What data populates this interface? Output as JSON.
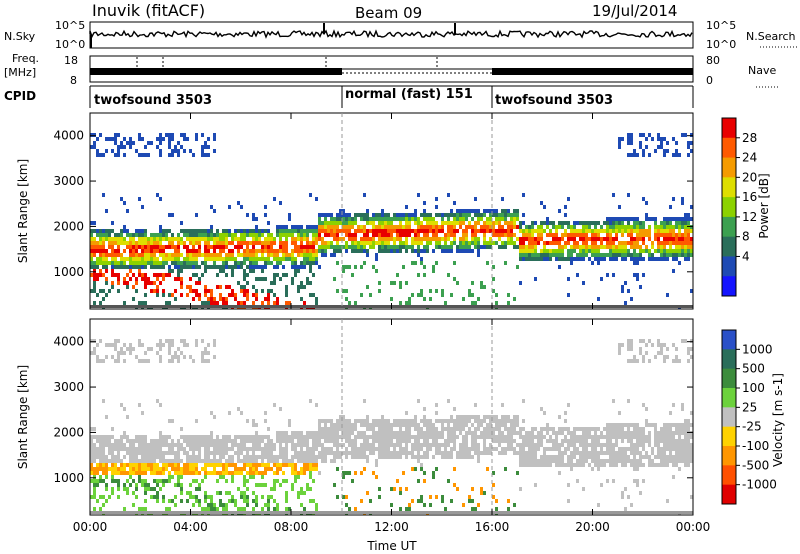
{
  "header": {
    "station": "Inuvik (fitACF)",
    "beam": "Beam 09",
    "date": "19/Jul/2014"
  },
  "top_panels": {
    "sky": {
      "left_label": "N.Sky",
      "right_label": "N.Search",
      "left_ticks": [
        "10^5",
        "10^0"
      ],
      "right_ticks": [
        "10^5",
        "10^0"
      ]
    },
    "freq": {
      "left_label_1": "Freq.",
      "left_label_2": "[MHz]",
      "right_label": "Nave",
      "left_ticks": [
        "18",
        "8"
      ],
      "right_ticks": [
        "80",
        "0"
      ]
    },
    "cpid": {
      "label": "CPID",
      "segments": [
        {
          "name": "twofsound 3503",
          "start": 0,
          "end": 10
        },
        {
          "name": "normal (fast) 151",
          "start": 10,
          "end": 16
        },
        {
          "name": "twofsound 3503",
          "start": 16,
          "end": 24
        }
      ]
    }
  },
  "chart_data": [
    {
      "type": "heatmap",
      "name": "power",
      "xlabel": "",
      "ylabel": "Slant Range [km]",
      "xlim": [
        0,
        24
      ],
      "ylim": [
        180,
        4500
      ],
      "yticks": [
        1000,
        2000,
        3000,
        4000
      ],
      "colorbar_label": "Power [dB]",
      "colorbar_ticks": [
        "28",
        "24",
        "20",
        "16",
        "12",
        "8",
        "4"
      ],
      "colorbar_colors": [
        "#e80000",
        "#ff5a00",
        "#f59b00",
        "#dede00",
        "#8cd200",
        "#3ca050",
        "#2a6e5a",
        "#1e4ab4",
        "#1414ff"
      ]
    },
    {
      "type": "heatmap",
      "name": "velocity",
      "xlabel": "Time UT",
      "ylabel": "Slant Range [km]",
      "xlim": [
        0,
        24
      ],
      "ylim": [
        180,
        4500
      ],
      "yticks": [
        1000,
        2000,
        3000,
        4000
      ],
      "xticks": [
        "00:00",
        "04:00",
        "08:00",
        "12:00",
        "16:00",
        "20:00",
        "00:00"
      ],
      "colorbar_label": "Velocity [m s-1]",
      "colorbar_ticks": [
        "1000",
        "500",
        "100",
        "25",
        "-25",
        "-100",
        "-500",
        "-1000"
      ],
      "colorbar_colors": [
        "#2a50c8",
        "#2a6e5a",
        "#3c8c3c",
        "#6cd23c",
        "#c0c0c0",
        "#ffd200",
        "#ff9600",
        "#ff5000",
        "#e00000"
      ]
    }
  ]
}
